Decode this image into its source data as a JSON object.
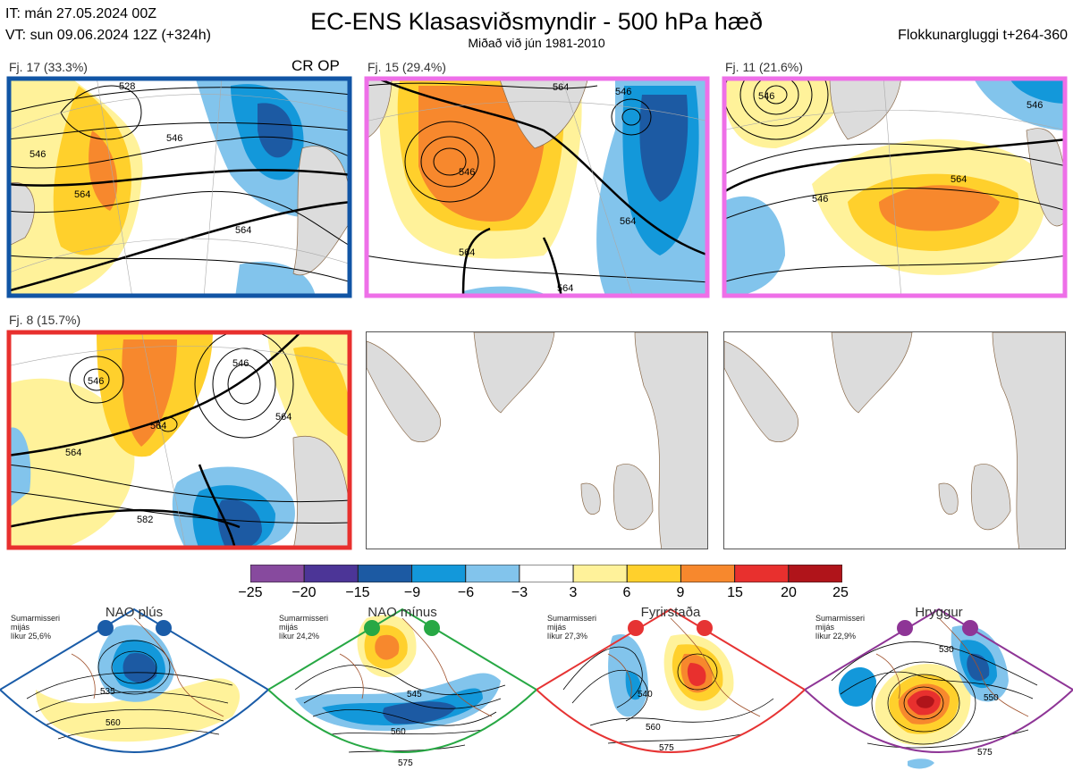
{
  "header": {
    "issue_time": "IT: mán 27.05.2024 00Z",
    "valid_time": "VT: sun 09.06.2024 12Z  (+324h)",
    "title": "EC-ENS Klasasviðsmyndir - 500 hPa hæð",
    "subtitle": "Miðað við jún 1981-2010",
    "window": "Flokkunargluggi t+264-360"
  },
  "crop_label": "CR OP",
  "clusters": [
    {
      "label": "Fj. 17 (33.3%)",
      "frame_color": "#1155a5",
      "contours": [
        "528",
        "546",
        "546",
        "564",
        "564"
      ]
    },
    {
      "label": "Fj. 15 (29.4%)",
      "frame_color": "#ee6fe8",
      "contours": [
        "546",
        "564",
        "564",
        "564",
        "546",
        "564"
      ]
    },
    {
      "label": "Fj. 11 (21.6%)",
      "frame_color": "#ee6fe8",
      "contours": [
        "546",
        "564",
        "546",
        "546"
      ]
    },
    {
      "label": "Fj. 8 (15.7%)",
      "frame_color": "#e8302e",
      "contours": [
        "546",
        "546",
        "564",
        "564",
        "582",
        "564"
      ]
    }
  ],
  "colorbar": {
    "ticks": [
      "−25",
      "−20",
      "−15",
      "−9",
      "−6",
      "−3",
      "3",
      "6",
      "9",
      "15",
      "20",
      "25"
    ],
    "colors": [
      "#874a9e",
      "#4c3597",
      "#1c5aa3",
      "#1398da",
      "#82c4ec",
      "#ffffff",
      "#fff29a",
      "#ffd02c",
      "#f7882d",
      "#e8302e",
      "#b0141a"
    ]
  },
  "regimes": [
    {
      "name": "NAO plús",
      "info": [
        "Sumarmisseri",
        "mijás",
        "líkur 25,6%"
      ],
      "color": "#1a5ca8",
      "labels": [
        "535",
        "560"
      ]
    },
    {
      "name": "NAO mínus",
      "info": [
        "Sumarmisseri",
        "mijás",
        "líkur 24,2%"
      ],
      "color": "#27a844",
      "labels": [
        "545",
        "560",
        "575"
      ]
    },
    {
      "name": "Fyrirstaða",
      "info": [
        "Sumarmisseri",
        "mijás",
        "líkur 27,3%"
      ],
      "color": "#e63333",
      "labels": [
        "540",
        "560",
        "575"
      ]
    },
    {
      "name": "Hryggur",
      "info": [
        "Sumarmisseri",
        "mijás",
        "líkur 22,9%"
      ],
      "color": "#8e3596",
      "labels": [
        "530",
        "550",
        "575"
      ]
    }
  ]
}
